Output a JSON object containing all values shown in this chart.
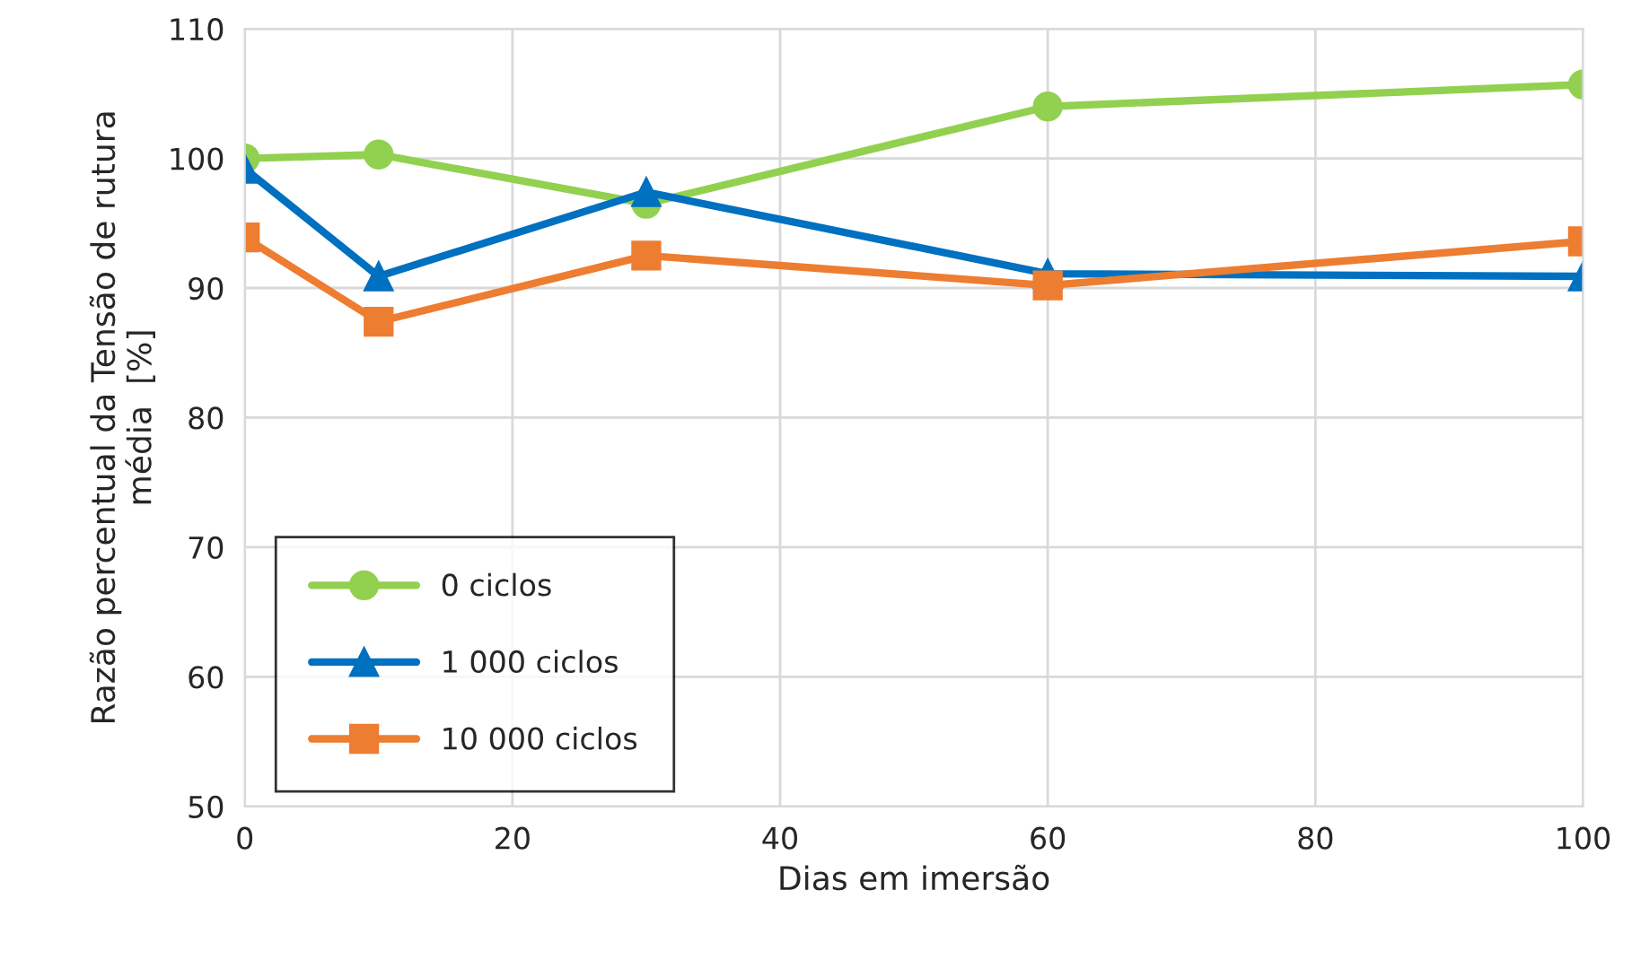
{
  "chart_data": {
    "type": "line",
    "xlabel": "Dias em imersão",
    "ylabel": "Razão percentual da Tensão de rutura\nmédia  [%]",
    "x": [
      0,
      10,
      30,
      60,
      100
    ],
    "series": [
      {
        "name": "0 ciclos",
        "color": "#92d050",
        "marker": "circle",
        "values": [
          100,
          100.3,
          96.5,
          104,
          105.7
        ]
      },
      {
        "name": "1 000 ciclos",
        "color": "#0070c0",
        "marker": "triangle",
        "values": [
          99.2,
          90.9,
          97.4,
          91.1,
          90.9
        ]
      },
      {
        "name": "10 000 ciclos",
        "color": "#ed7d31",
        "marker": "square",
        "values": [
          93.9,
          87.4,
          92.5,
          90.2,
          93.6
        ]
      }
    ],
    "xlim": [
      0,
      100
    ],
    "xticks": [
      0,
      20,
      40,
      60,
      80,
      100
    ],
    "ylim": [
      50,
      110
    ],
    "yticks": [
      50,
      60,
      70,
      80,
      90,
      100,
      110
    ],
    "grid": true,
    "legend": "bottom left",
    "line_style": "solid"
  }
}
